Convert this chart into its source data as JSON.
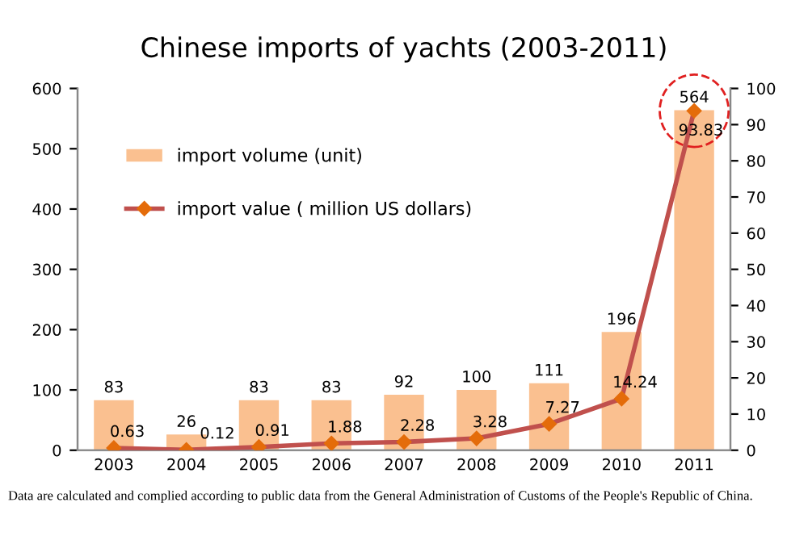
{
  "chart_data": {
    "type": "bar",
    "title": "Chinese imports of yachts (2003-2011)",
    "categories": [
      "2003",
      "2004",
      "2005",
      "2006",
      "2007",
      "2008",
      "2009",
      "2010",
      "2011"
    ],
    "series": [
      {
        "name": "import volume (unit)",
        "color": "#fac090",
        "values": [
          83,
          26,
          83,
          83,
          92,
          100,
          111,
          196,
          564
        ]
      },
      {
        "name": "import value ( million US dollars)",
        "type": "line",
        "axis": "y2",
        "color": "#c0504d",
        "values": [
          0.63,
          0.12,
          0.91,
          1.88,
          2.28,
          3.28,
          7.27,
          14.24,
          93.83
        ]
      }
    ],
    "ylim": [
      0,
      600
    ],
    "yticks": [
      0,
      100,
      200,
      300,
      400,
      500,
      600
    ],
    "y2lim": [
      0,
      100
    ],
    "y2ticks": [
      0,
      10,
      20,
      30,
      40,
      50,
      60,
      70,
      80,
      90,
      100
    ],
    "data_labels": true,
    "legend": "top left",
    "grid": false,
    "marker": "diamond",
    "line_style": "solid",
    "annotations": [
      "Data are calculated and complied according to public data from the General Administration of Customs of the People's Republic of China."
    ]
  }
}
